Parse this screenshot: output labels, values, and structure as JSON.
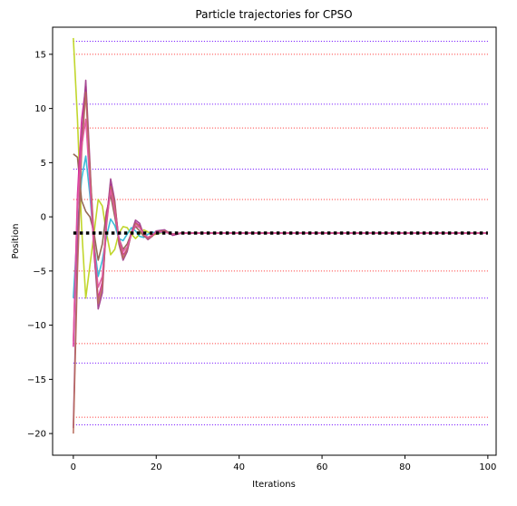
{
  "chart_data": {
    "type": "line",
    "title": "Particle trajectories for CPSO",
    "xlabel": "Iterations",
    "ylabel": "Position",
    "xlim": [
      -5,
      102
    ],
    "ylim": [
      -22,
      17.5
    ],
    "xticks": [
      0,
      20,
      40,
      60,
      80,
      100
    ],
    "yticks": [
      -20,
      -15,
      -10,
      -5,
      0,
      5,
      10,
      15
    ],
    "grid": false,
    "legend": "none",
    "hlines": [
      {
        "y": 16.2,
        "color": "#6a00ff",
        "style": "dotted"
      },
      {
        "y": 15.0,
        "color": "#ff2a2a",
        "style": "dotted"
      },
      {
        "y": 10.4,
        "color": "#6a00ff",
        "style": "dotted"
      },
      {
        "y": 8.2,
        "color": "#ff2a2a",
        "style": "dotted"
      },
      {
        "y": 4.4,
        "color": "#6a00ff",
        "style": "dotted"
      },
      {
        "y": 1.6,
        "color": "#ff2a2a",
        "style": "dotted"
      },
      {
        "y": -5.0,
        "color": "#ff2a2a",
        "style": "dotted"
      },
      {
        "y": -7.5,
        "color": "#6a00ff",
        "style": "dotted"
      },
      {
        "y": -11.7,
        "color": "#ff2a2a",
        "style": "dotted"
      },
      {
        "y": -13.5,
        "color": "#6a00ff",
        "style": "dotted"
      },
      {
        "y": -18.5,
        "color": "#ff2a2a",
        "style": "dotted"
      },
      {
        "y": -19.2,
        "color": "#6a00ff",
        "style": "dotted"
      }
    ],
    "optimum": {
      "y": -1.5,
      "x_range": [
        0,
        100
      ],
      "color": "#000000",
      "style": "thick-dotted"
    },
    "series": [
      {
        "color": "#bcd31a",
        "x": [
          0,
          1,
          2,
          3,
          4,
          5,
          6,
          7,
          8,
          9,
          10,
          11,
          12,
          13,
          14,
          15,
          16,
          17,
          18,
          19,
          20,
          22,
          24,
          26,
          28,
          30,
          100
        ],
        "values": [
          16.5,
          9.0,
          -1.0,
          -7.5,
          -4.5,
          -1.5,
          1.6,
          1.0,
          -1.5,
          -3.5,
          -3.0,
          -1.5,
          -0.9,
          -1.0,
          -1.6,
          -2.0,
          -1.6,
          -1.2,
          -1.4,
          -1.7,
          -1.6,
          -1.4,
          -1.6,
          -1.5,
          -1.5,
          -1.5,
          -1.5
        ]
      },
      {
        "color": "#2ab7d6",
        "x": [
          0,
          1,
          2,
          3,
          4,
          5,
          6,
          7,
          8,
          9,
          10,
          11,
          12,
          13,
          14,
          15,
          16,
          17,
          18,
          19,
          20,
          22,
          24,
          26,
          28,
          30,
          100
        ],
        "values": [
          -7.5,
          -1.0,
          3.5,
          5.6,
          2.0,
          -2.5,
          -5.5,
          -4.0,
          -1.8,
          -0.2,
          -0.8,
          -2.0,
          -2.2,
          -1.6,
          -1.0,
          -1.3,
          -1.8,
          -1.9,
          -1.6,
          -1.4,
          -1.5,
          -1.4,
          -1.6,
          -1.5,
          -1.5,
          -1.5,
          -1.5
        ]
      },
      {
        "color": "#8c5d4a",
        "x": [
          0,
          1,
          2,
          3,
          4,
          5,
          6,
          7,
          8,
          9,
          10,
          11,
          12,
          13,
          14,
          15,
          16,
          17,
          18,
          19,
          20,
          22,
          24,
          26,
          28,
          30,
          100
        ],
        "values": [
          5.8,
          5.5,
          1.5,
          0.5,
          0.0,
          -1.5,
          -4.0,
          -2.5,
          0.5,
          2.0,
          0.0,
          -2.0,
          -3.0,
          -2.5,
          -1.5,
          -0.9,
          -1.3,
          -1.8,
          -1.9,
          -1.7,
          -1.5,
          -1.3,
          -1.6,
          -1.5,
          -1.5,
          -1.5,
          -1.5
        ]
      },
      {
        "color": "#d62a9a",
        "x": [
          0,
          1,
          2,
          3,
          4,
          5,
          6,
          7,
          8,
          9,
          10,
          11,
          12,
          13,
          14,
          15,
          16,
          17,
          18,
          19,
          20,
          22,
          24,
          26,
          28,
          30,
          100
        ],
        "values": [
          -12.0,
          2.0,
          9.0,
          12.0,
          4.0,
          -3.5,
          -7.5,
          -6.0,
          0.0,
          3.0,
          1.0,
          -2.0,
          -3.5,
          -3.0,
          -1.5,
          -0.5,
          -0.8,
          -1.6,
          -2.0,
          -1.8,
          -1.4,
          -1.3,
          -1.7,
          -1.5,
          -1.5,
          -1.5,
          -1.5
        ]
      },
      {
        "color": "#9e3b8a",
        "x": [
          0,
          1,
          2,
          3,
          4,
          5,
          6,
          7,
          8,
          9,
          10,
          11,
          12,
          13,
          14,
          15,
          16,
          17,
          18,
          19,
          20,
          22,
          24,
          26,
          28,
          30,
          100
        ],
        "values": [
          -19.5,
          -3.0,
          7.0,
          12.6,
          5.0,
          -3.0,
          -8.5,
          -7.0,
          -0.5,
          3.5,
          1.5,
          -2.5,
          -4.0,
          -3.2,
          -1.5,
          -0.3,
          -0.6,
          -1.7,
          -2.1,
          -1.8,
          -1.3,
          -1.2,
          -1.7,
          -1.5,
          -1.5,
          -1.5,
          -1.5
        ]
      },
      {
        "color": "#b76a5a",
        "x": [
          0,
          1,
          2,
          3,
          4,
          5,
          6,
          7,
          8,
          9,
          10,
          11,
          12,
          13,
          14,
          15,
          16,
          17,
          18,
          19,
          20,
          22,
          24,
          26,
          28,
          30,
          100
        ],
        "values": [
          -20.0,
          -5.0,
          6.0,
          11.5,
          4.5,
          -2.0,
          -8.0,
          -6.5,
          -0.8,
          2.8,
          1.2,
          -2.2,
          -3.8,
          -3.0,
          -1.6,
          -0.6,
          -0.9,
          -1.7,
          -2.0,
          -1.8,
          -1.4,
          -1.3,
          -1.6,
          -1.5,
          -1.5,
          -1.5,
          -1.5
        ]
      },
      {
        "color": "#e0529e",
        "x": [
          0,
          1,
          2,
          3,
          4,
          5,
          6,
          7,
          8,
          9,
          10,
          11,
          12,
          13,
          14,
          15,
          16,
          17,
          18,
          19,
          20,
          22,
          24,
          26,
          28,
          30,
          100
        ],
        "values": [
          -11.5,
          1.0,
          6.5,
          9.0,
          3.0,
          -3.0,
          -6.5,
          -5.5,
          -0.5,
          2.5,
          0.5,
          -2.0,
          -3.2,
          -2.8,
          -1.6,
          -0.8,
          -1.0,
          -1.6,
          -1.9,
          -1.7,
          -1.4,
          -1.4,
          -1.6,
          -1.5,
          -1.5,
          -1.5,
          -1.5
        ]
      }
    ]
  }
}
